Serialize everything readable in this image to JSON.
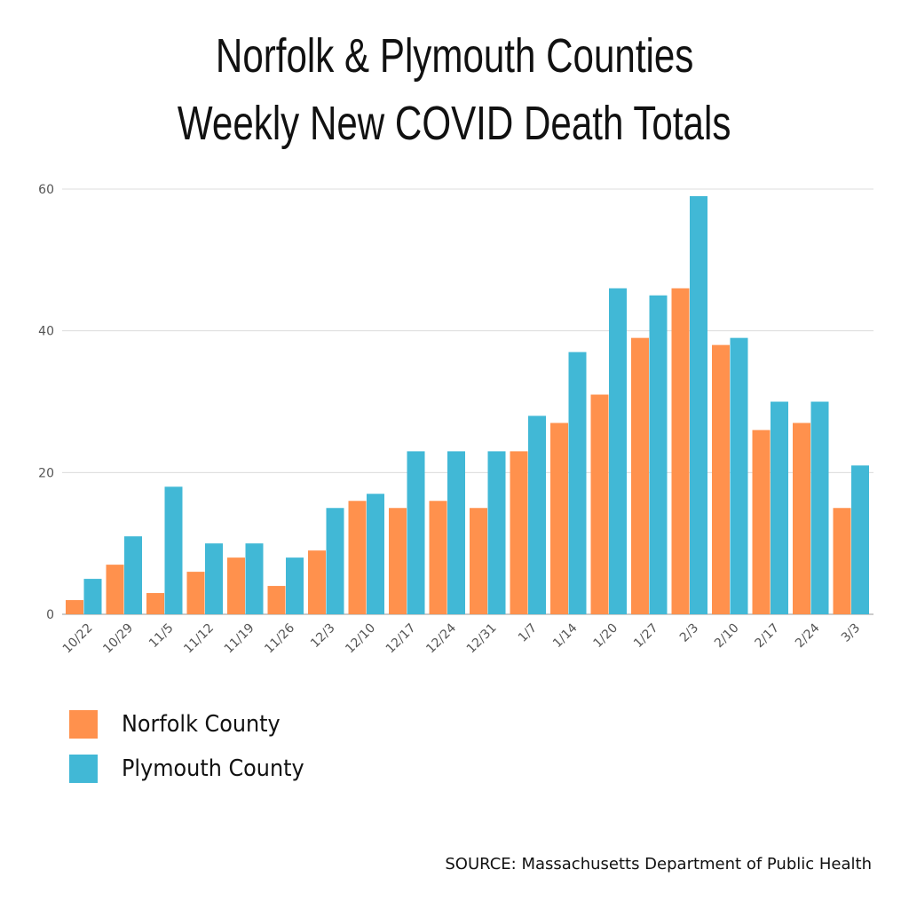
{
  "chart_data": {
    "type": "bar",
    "title": [
      "Norfolk & Plymouth Counties",
      "Weekly New COVID Death Totals"
    ],
    "xlabel": "",
    "ylabel": "",
    "ylim": [
      0,
      60
    ],
    "yticks": [
      0,
      20,
      40,
      60
    ],
    "grid": true,
    "legend_position": "bottom-left",
    "categories": [
      "10/22",
      "10/29",
      "11/5",
      "11/12",
      "11/19",
      "11/26",
      "12/3",
      "12/10",
      "12/17",
      "12/24",
      "12/31",
      "1/7",
      "1/14",
      "1/20",
      "1/27",
      "2/3",
      "2/10",
      "2/17",
      "2/24",
      "3/3"
    ],
    "series": [
      {
        "name": "Norfolk County",
        "color": "#FF914D",
        "values": [
          2,
          7,
          3,
          6,
          8,
          4,
          9,
          16,
          15,
          16,
          15,
          23,
          27,
          31,
          39,
          46,
          38,
          26,
          27,
          15
        ]
      },
      {
        "name": "Plymouth County",
        "color": "#41B8D6",
        "values": [
          5,
          11,
          18,
          10,
          10,
          8,
          15,
          17,
          23,
          23,
          23,
          28,
          37,
          46,
          45,
          59,
          39,
          30,
          30,
          21
        ]
      }
    ],
    "source": "SOURCE: Massachusetts Department of Public Health"
  }
}
